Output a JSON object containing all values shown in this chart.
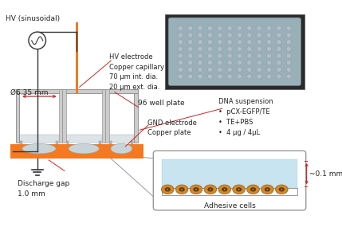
{
  "bg_color": "#ffffff",
  "hv_label": "HV (sinusoidal)",
  "hv_electrode_label": "HV electrode\nCopper capillary\n70 μm int. dia.\n20 μm ext. dia.",
  "diameter_label": "Ø6.35 mm",
  "well_plate_label": "96 well plate",
  "gnd_label": "GND electrode\nCopper plate",
  "discharge_label": "Discharge gap\n1.0 mm",
  "dna_label": "DNA suspension\n•  pCX-EGFP/TE\n•  TE+PBS\n•  4 μg / 4μL",
  "cells_label": "Adhesive cells",
  "thickness_label": "~0.1 mm",
  "orange_color": "#F47920",
  "red_color": "#CC2222",
  "gray_color": "#999999",
  "light_blue": "#c8e4f0",
  "cell_body_color": "#D4882A",
  "cell_dark": "#5a3a10",
  "cell_edge": "#8B5E1A",
  "box_border": "#999999",
  "photo_bg": "#2a2a2a",
  "photo_well_fill": "#b0bfc8",
  "photo_well_edge": "#808c94"
}
